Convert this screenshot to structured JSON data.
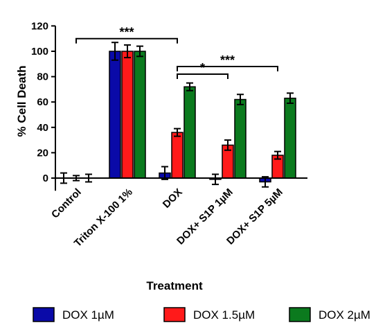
{
  "chart_data": {
    "type": "bar",
    "ylabel": "% Cell Death",
    "xlabel": "Treatment",
    "ylim": [
      -10,
      120
    ],
    "yticks": [
      0,
      20,
      40,
      60,
      80,
      100,
      120
    ],
    "grid": false,
    "legend_position": "bottom",
    "categories": [
      "Control",
      "Triton X-100 1%",
      "DOX",
      "DOX+ S1P 1µM",
      "DOX+ S1P 5µM"
    ],
    "series": [
      {
        "name": "DOX 1µM",
        "color": "#0a0aa8",
        "values": [
          0,
          100,
          4,
          -1,
          -3
        ],
        "errors": [
          4,
          7,
          5,
          4,
          4
        ]
      },
      {
        "name": "DOX 1.5µM",
        "color": "#ff1a1a",
        "values": [
          0,
          100,
          36,
          26,
          18
        ],
        "errors": [
          2,
          5,
          3,
          4,
          3
        ]
      },
      {
        "name": "DOX 2µM",
        "color": "#0b7a1e",
        "values": [
          0,
          100,
          72,
          62,
          63
        ],
        "errors": [
          3,
          4,
          3,
          4,
          4
        ]
      }
    ],
    "annotations": [
      {
        "text": "***",
        "from_category": 0,
        "to_category": 2,
        "level": 110
      },
      {
        "text": "***",
        "from_category": 2,
        "to_category": 4,
        "level": 88
      },
      {
        "text": "*",
        "from_category": 2,
        "to_category": 3,
        "level": 82
      }
    ]
  }
}
